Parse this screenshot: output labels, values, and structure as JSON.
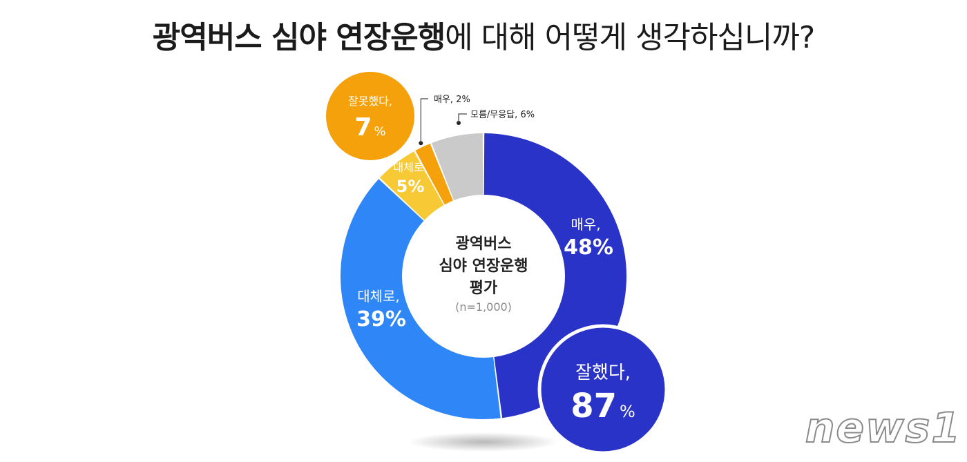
{
  "title_bold": "광역버스 심야 연장운행",
  "title_rest": "에 대해 어떻게 생각하십니까?",
  "chart_data": {
    "type": "pie",
    "title": "광역버스 심야 연장운행에 대해 어떻게 생각하십니까?",
    "center_label": [
      "광역버스",
      "심야 연장운행",
      "평가"
    ],
    "sample": "(n=1,000)",
    "slices": [
      {
        "label": "매우,",
        "value": 48,
        "display": "48%",
        "color": "#2a33c8"
      },
      {
        "label": "대체로,",
        "value": 39,
        "display": "39%",
        "color": "#2f86f6"
      },
      {
        "label": "대체로,",
        "value": 5,
        "display": "5%",
        "color": "#f7c934"
      },
      {
        "label": "매우, 2%",
        "value": 2,
        "display": "",
        "color": "#f5a10c"
      },
      {
        "label": "모름/무응답, 6%",
        "value": 6,
        "display": "",
        "color": "#cacaca"
      }
    ],
    "groups": [
      {
        "label": "잘했다,",
        "value": "87",
        "unit": "%",
        "color": "#2a33c8"
      },
      {
        "label": "잘못했다,",
        "value": "7",
        "unit": "%",
        "color": "#f5a10c"
      }
    ]
  },
  "watermark": "news1"
}
